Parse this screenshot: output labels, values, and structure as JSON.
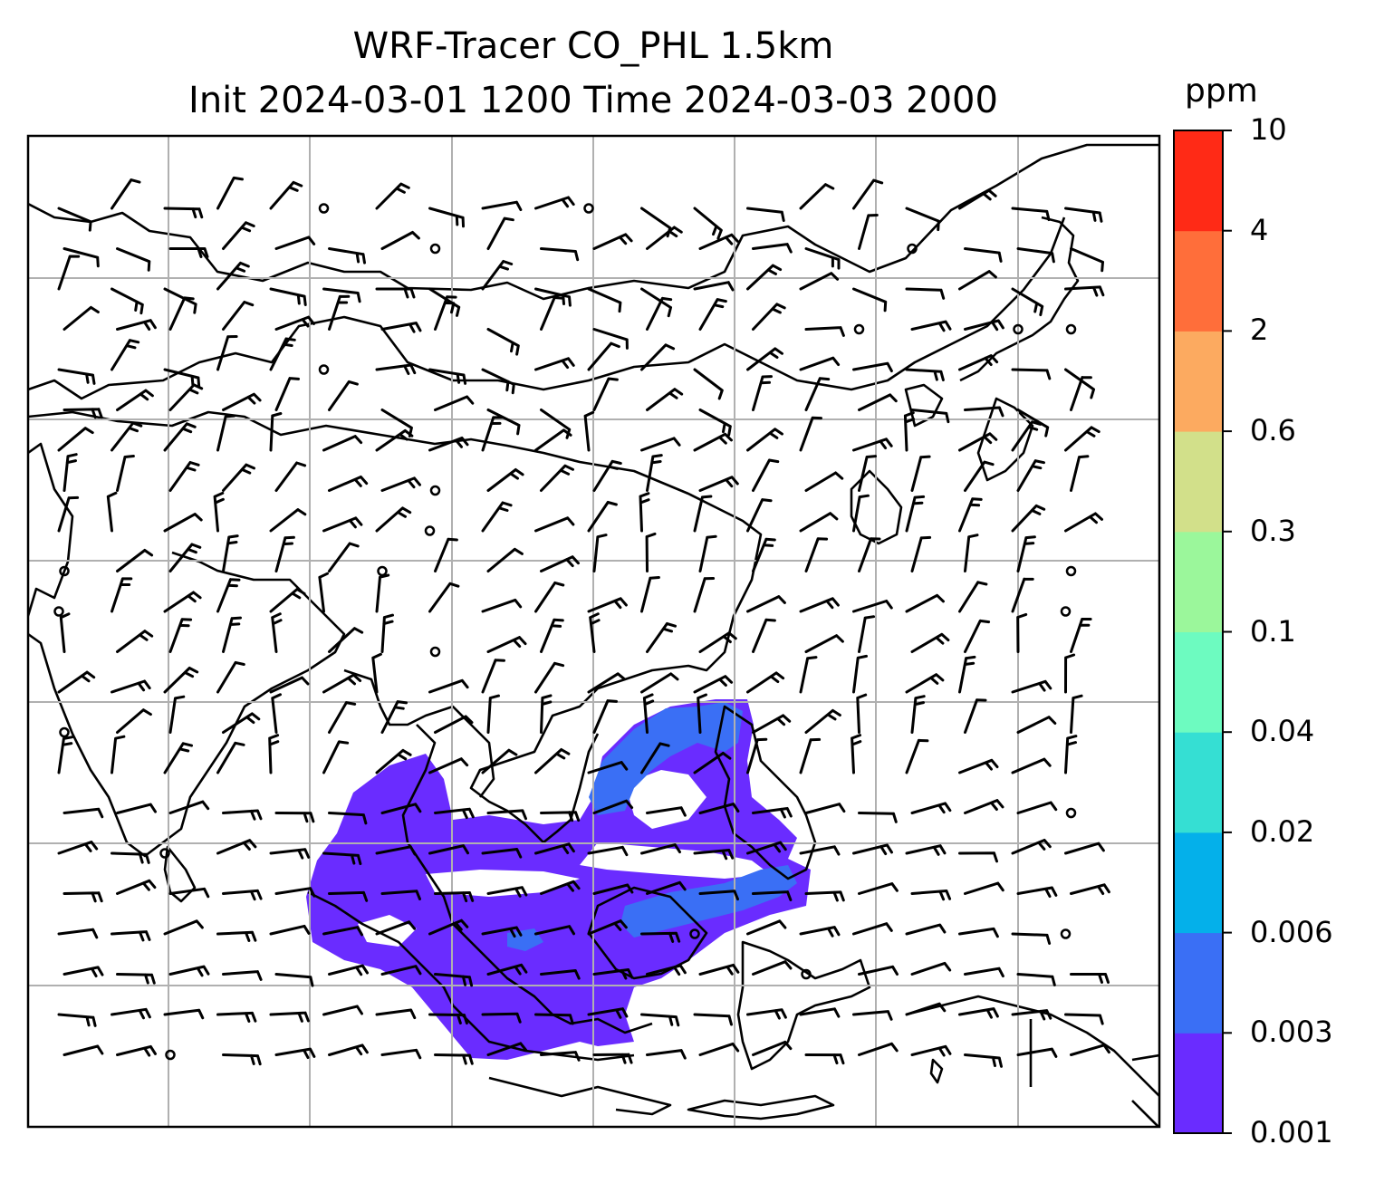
{
  "title": {
    "line1": "WRF-Tracer CO_PHL 1.5km",
    "line2": "Init 2024-03-01 1200 Time 2024-03-03 2000"
  },
  "colorbar": {
    "unit": "ppm",
    "levels": [
      {
        "label": "0.001",
        "color": "#6a2cff"
      },
      {
        "label": "0.003",
        "color": "#3a6ff5"
      },
      {
        "label": "0.006",
        "color": "#04b0ea"
      },
      {
        "label": "0.02",
        "color": "#35dfd3"
      },
      {
        "label": "0.04",
        "color": "#6dfbc0"
      },
      {
        "label": "0.1",
        "color": "#9bf79b"
      },
      {
        "label": "0.3",
        "color": "#d2e08a"
      },
      {
        "label": "0.6",
        "color": "#fcaa60"
      },
      {
        "label": "2",
        "color": "#ff6e3a"
      },
      {
        "label": "4",
        "color": "#ff2a16"
      },
      {
        "label": "10",
        "color": ""
      }
    ]
  },
  "map": {
    "gridlines": true,
    "coastline_color": "#000000",
    "wind_barbs": true,
    "tracer_plume_color": "#6a2cff",
    "tracer_core_color": "#3a6ff5"
  }
}
